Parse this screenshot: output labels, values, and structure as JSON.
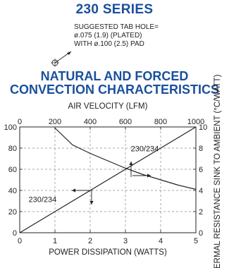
{
  "header": {
    "series_title": "230 SERIES",
    "note_lines": [
      "SUGGESTED TAB HOLE=",
      "ø.075 (1.9) (PLATED)",
      "WITH ø.100 (2.5) PAD"
    ],
    "chart_title_lines": [
      "NATURAL AND FORCED",
      "CONVECTION CHARACTERISTICS"
    ]
  },
  "colors": {
    "title_blue": "#1a4f9c",
    "ink": "#222222",
    "grid": "#555555"
  },
  "chart_data": {
    "type": "line",
    "xlabel": "POWER DISSIPATION (WATTS)",
    "x_ticks": [
      "0",
      "1",
      "2",
      "3",
      "4",
      "5"
    ],
    "xlim": [
      0,
      5
    ],
    "x2label": "AIR VELOCITY (LFM)",
    "x2_ticks": [
      "0",
      "200",
      "400",
      "600",
      "800",
      "1000"
    ],
    "x2lim": [
      0,
      1000
    ],
    "ylabel_left": "",
    "y_left_ticks": [
      "0",
      "20",
      "40",
      "60",
      "80",
      "100"
    ],
    "ylim_left": [
      0,
      100
    ],
    "ylabel_right": "THERMAL RESISTANCE SINK TO AMBIENT (°C/WATT)",
    "y_right_ticks": [
      "0",
      "2",
      "4",
      "6",
      "8",
      "10"
    ],
    "ylim_right": [
      0,
      10
    ],
    "grid": true,
    "series": [
      {
        "name": "230/234",
        "axes": "bottom-left",
        "x": [
          0,
          1,
          2,
          2.5,
          3,
          4,
          5
        ],
        "y": [
          0,
          20,
          40,
          50,
          60,
          80,
          100
        ]
      },
      {
        "name": "230/234",
        "axes": "top-right",
        "x": [
          200,
          300,
          400,
          500,
          600,
          700,
          800,
          900,
          1000
        ],
        "y": [
          9.9,
          8.3,
          7.5,
          6.8,
          6.1,
          5.5,
          5.0,
          4.5,
          4.1
        ]
      }
    ]
  }
}
